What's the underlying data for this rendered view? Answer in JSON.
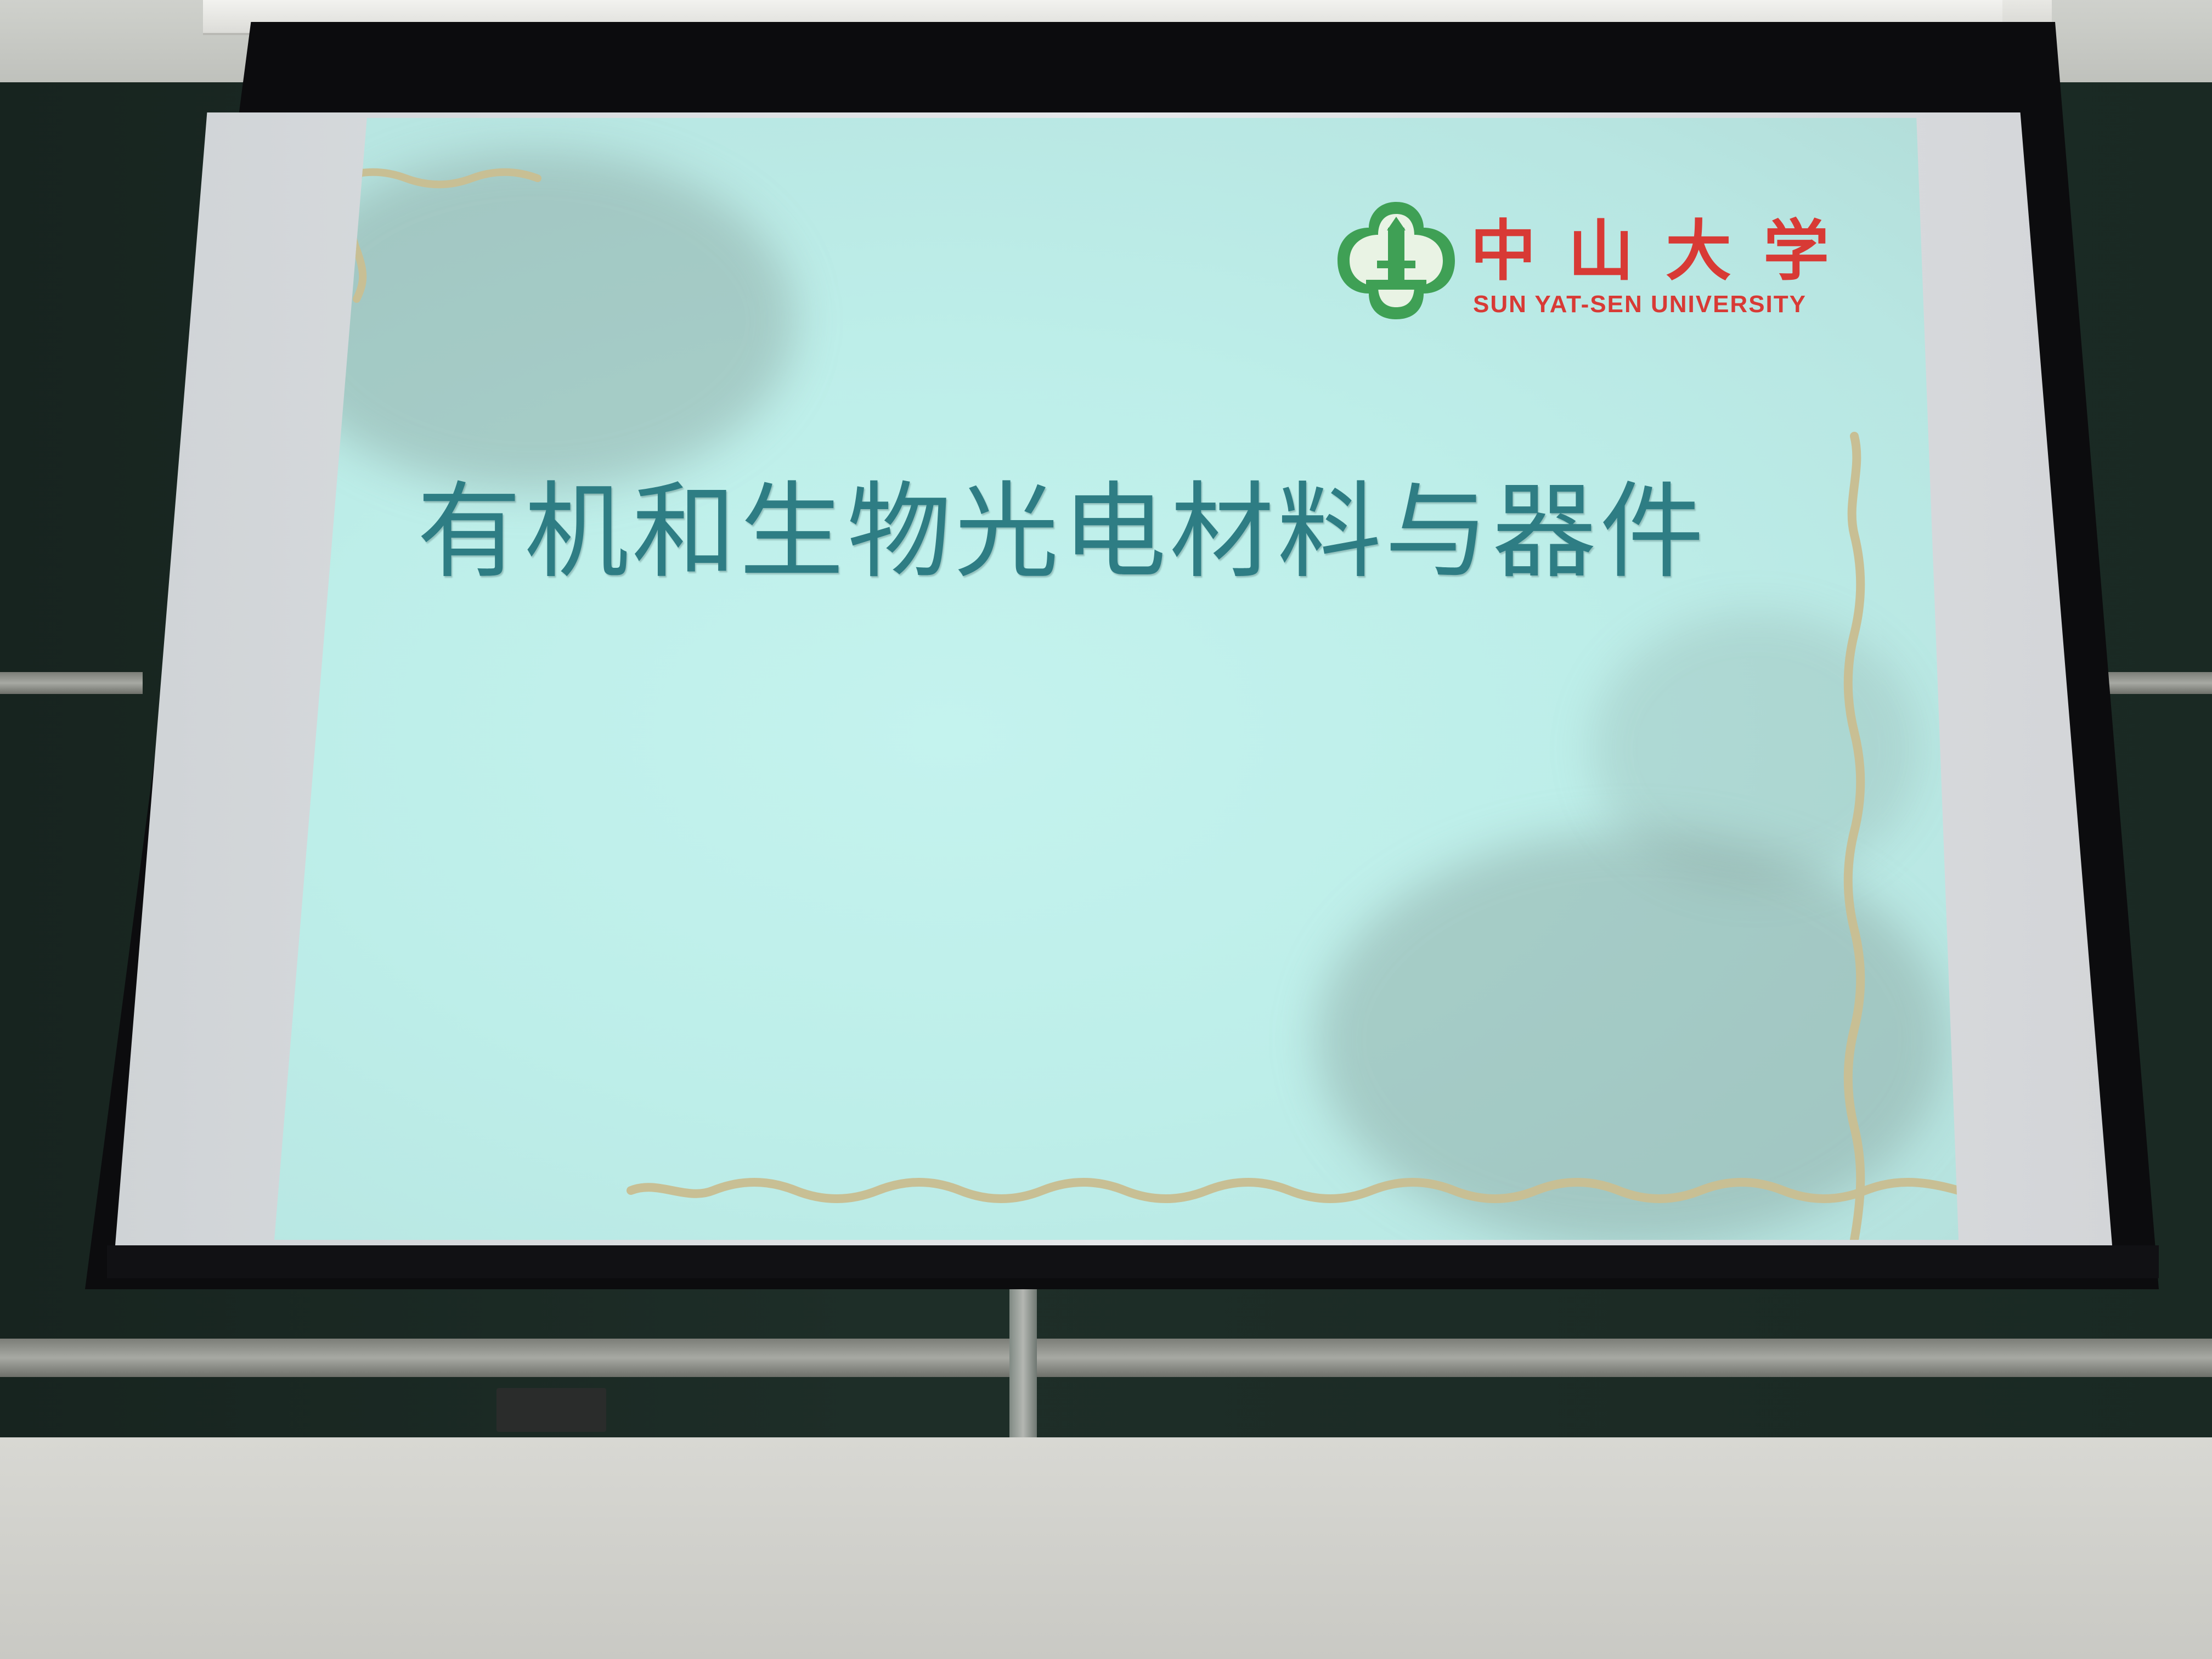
{
  "slide": {
    "title": "有机和生物光电材料与器件"
  },
  "logo": {
    "chinese_name": "中山大学",
    "english_name": "SUN YAT-SEN UNIVERSITY",
    "emblem_icon": "university-emblem-icon"
  },
  "colors": {
    "slide_background": "#bdeee9",
    "title_text": "#2e7d84",
    "logo_red": "#d83a35",
    "logo_green": "#3fa055",
    "border_ornament": "#c8bf94",
    "screen_frame": "#0c0c0e",
    "blackboard": "#1b2a24"
  }
}
